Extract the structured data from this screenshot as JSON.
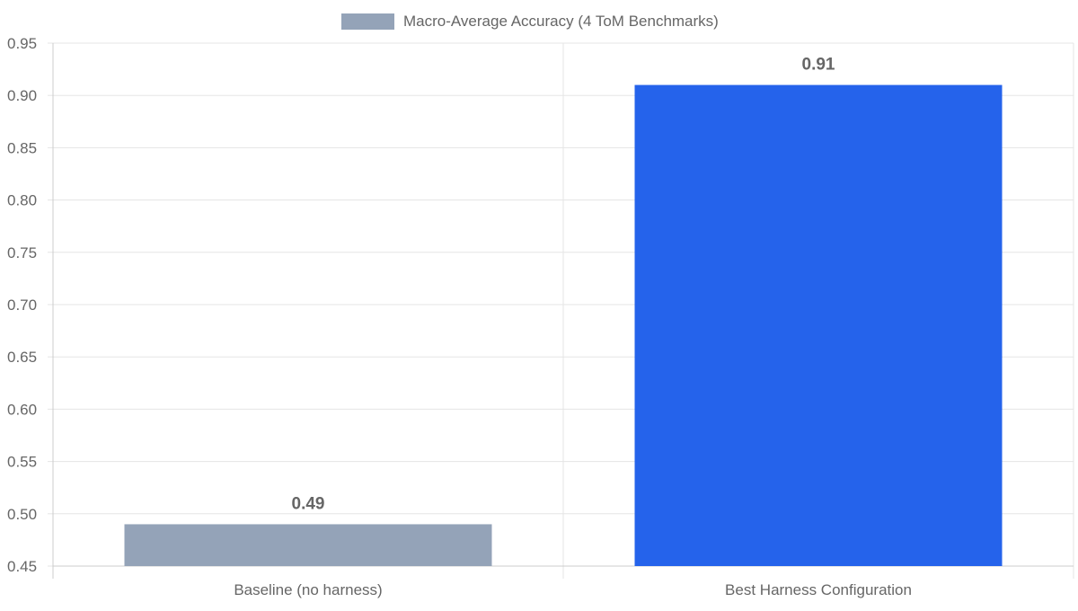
{
  "chart_data": {
    "type": "bar",
    "categories": [
      "Baseline (no harness)",
      "Best Harness Configuration"
    ],
    "series": [
      {
        "name": "Macro-Average Accuracy (4 ToM Benchmarks)",
        "values": [
          0.49,
          0.91
        ],
        "colors": [
          "#94a3b8",
          "#2563eb"
        ]
      }
    ],
    "data_labels": [
      "0.49",
      "0.91"
    ],
    "ylim": [
      0.45,
      0.95
    ],
    "yticks": [
      "0.45",
      "0.50",
      "0.55",
      "0.60",
      "0.65",
      "0.70",
      "0.75",
      "0.80",
      "0.85",
      "0.90",
      "0.95"
    ],
    "legend_placement": "top-center",
    "grid": true,
    "colors": {
      "grid": "#e5e5e5",
      "axis": "#cccccc",
      "text": "#666666"
    }
  }
}
